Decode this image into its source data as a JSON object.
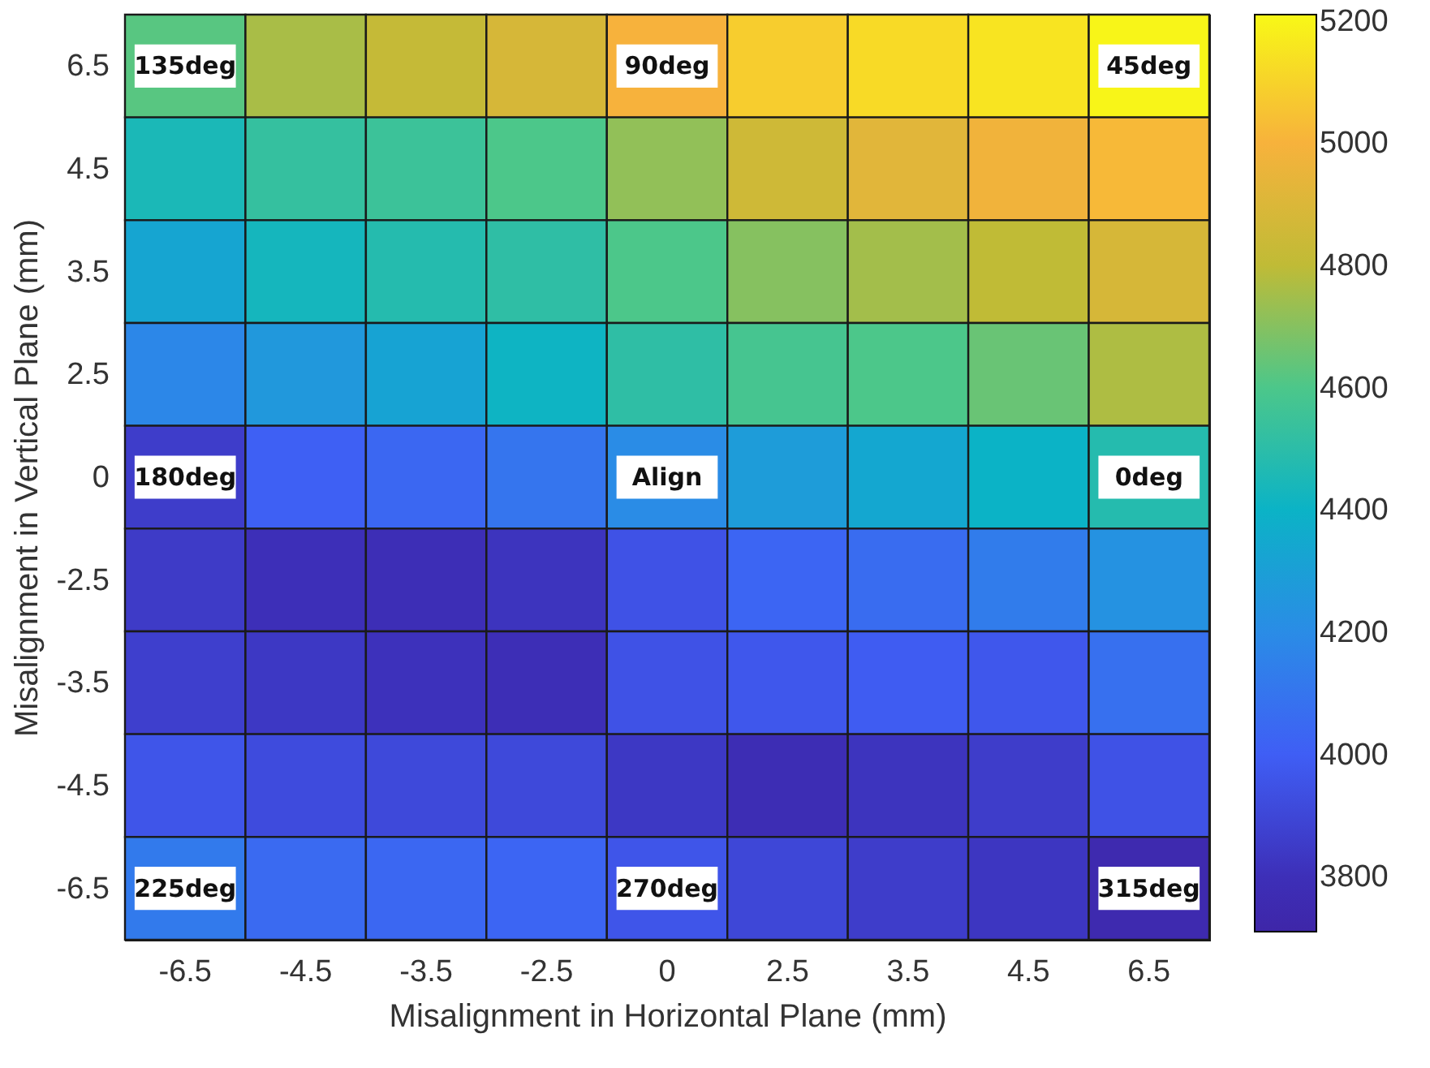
{
  "chart_data": {
    "type": "heatmap",
    "xlabel": "Misalignment in Horizontal Plane (mm)",
    "ylabel": "Misalignment in Vertical Plane (mm)",
    "categories": [
      "-6.5",
      "-4.5",
      "-3.5",
      "-2.5",
      "0",
      "2.5",
      "3.5",
      "4.5",
      "6.5"
    ],
    "y_categories": [
      "6.5",
      "4.5",
      "3.5",
      "2.5",
      "0",
      "-2.5",
      "-3.5",
      "-4.5",
      "-6.5"
    ],
    "cells": [
      [
        4620,
        4760,
        4820,
        4880,
        5000,
        5080,
        5120,
        5150,
        5200
      ],
      [
        4450,
        4530,
        4550,
        4600,
        4720,
        4850,
        4920,
        4980,
        5020
      ],
      [
        4330,
        4430,
        4480,
        4510,
        4600,
        4700,
        4750,
        4800,
        4880
      ],
      [
        4180,
        4260,
        4320,
        4410,
        4510,
        4580,
        4600,
        4650,
        4770
      ],
      [
        3860,
        4010,
        4040,
        4100,
        4200,
        4280,
        4340,
        4400,
        4480
      ],
      [
        3850,
        3800,
        3790,
        3820,
        3950,
        4030,
        4060,
        4130,
        4230
      ],
      [
        3870,
        3840,
        3810,
        3790,
        3950,
        3970,
        3990,
        3970,
        4080
      ],
      [
        3960,
        3920,
        3910,
        3910,
        3840,
        3780,
        3820,
        3860,
        3950
      ],
      [
        4120,
        4050,
        4040,
        4030,
        3960,
        3900,
        3860,
        3830,
        3750
      ]
    ],
    "clim": [
      3710,
      5210
    ],
    "cticks": [
      3800,
      4000,
      4200,
      4400,
      4600,
      4800,
      5000,
      5200
    ],
    "annotations": [
      "135deg",
      "90deg",
      "45deg",
      "180deg",
      "Align",
      "0deg",
      "225deg",
      "270deg",
      "315deg"
    ]
  }
}
